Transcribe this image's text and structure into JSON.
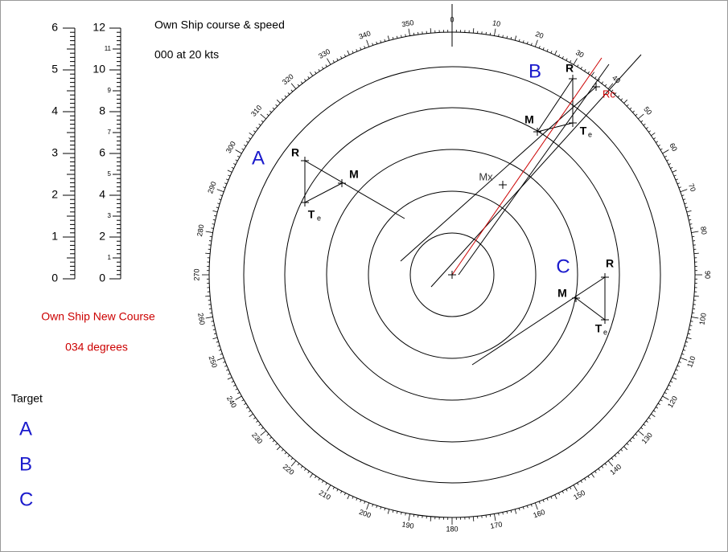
{
  "header": {
    "title": "Own Ship course & speed",
    "value": "000 at 20 kts"
  },
  "new_course": {
    "title": "Own Ship New Course",
    "value": "034 degrees"
  },
  "targets": {
    "title": "Target",
    "items": [
      "A",
      "B",
      "C"
    ]
  },
  "scales": {
    "left": [
      0,
      1,
      2,
      3,
      4,
      5,
      6
    ],
    "right": [
      0,
      1,
      2,
      3,
      4,
      5,
      6,
      7,
      8,
      9,
      10,
      11,
      12
    ]
  },
  "compass": [
    0,
    10,
    20,
    30,
    40,
    50,
    60,
    70,
    80,
    90,
    100,
    110,
    120,
    130,
    140,
    150,
    160,
    170,
    180,
    190,
    200,
    210,
    220,
    230,
    240,
    250,
    260,
    270,
    280,
    290,
    300,
    310,
    320,
    330,
    340,
    350
  ],
  "plot": {
    "targets": [
      {
        "name": "A",
        "r": "R",
        "m": "M",
        "t": "T",
        "sub": "e"
      },
      {
        "name": "B",
        "r": "R",
        "m": "M",
        "t": "T",
        "sub": "e"
      },
      {
        "name": "C",
        "r": "R",
        "m": "M",
        "t": "T",
        "sub": "e"
      }
    ],
    "mx": "Mx",
    "rc": "Rc"
  }
}
